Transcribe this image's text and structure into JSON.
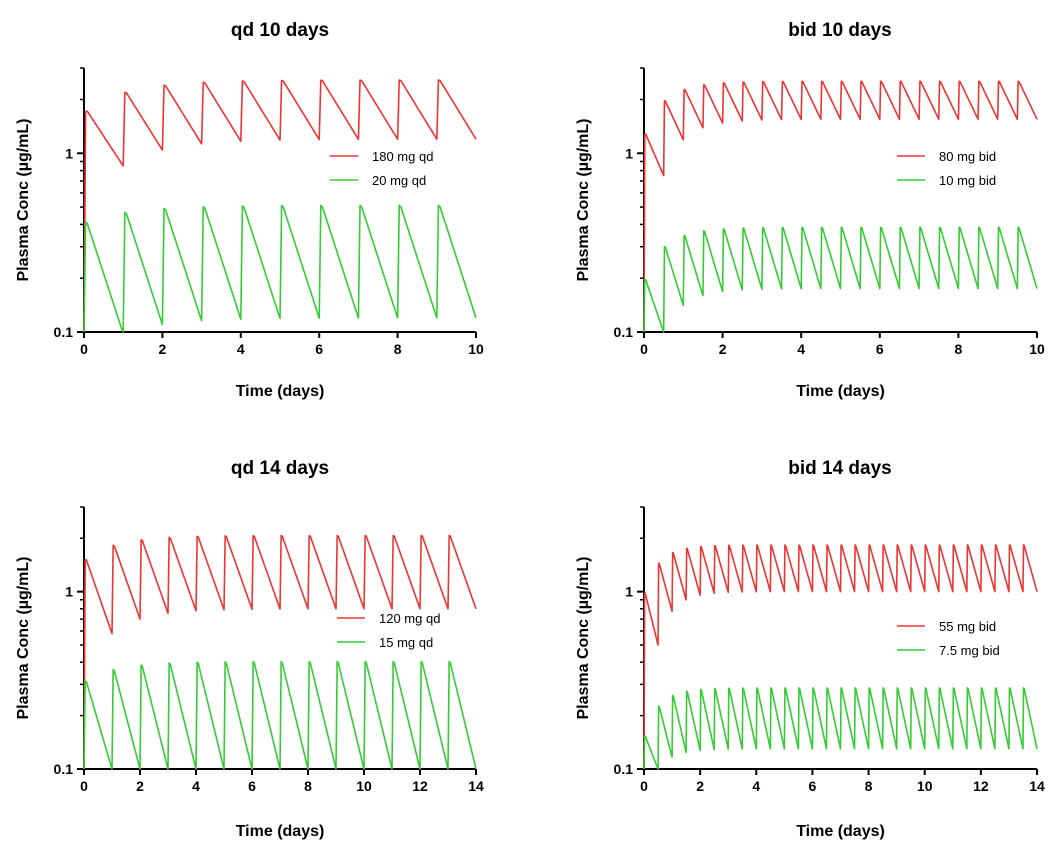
{
  "chart_data": [
    {
      "type": "line",
      "title": "qd 10 days",
      "xlabel": "Time (days)",
      "ylabel": "Plasma Conc (µg/mL)",
      "xlim": [
        0,
        10
      ],
      "ylim": [
        0.1,
        3
      ],
      "yscale": "log",
      "xticks": [
        0,
        2,
        4,
        6,
        8,
        10
      ],
      "xtick_labels": [
        "0",
        "2",
        "4",
        "6",
        "8",
        "10"
      ],
      "yticks": [
        0.1,
        1
      ],
      "ytick_labels": [
        "0.1",
        "1"
      ],
      "legend_position": "right",
      "series": [
        {
          "name": "180 mg qd",
          "color": "#ee3333",
          "dose_interval_days": 1,
          "x_end": 10,
          "first_dose_peak": 1.75,
          "steady_peak": 2.6,
          "steady_trough": 1.2,
          "first_trough": 0.85
        },
        {
          "name": "20 mg qd",
          "color": "#33cc33",
          "dose_interval_days": 1,
          "x_end": 10,
          "first_dose_peak": 0.42,
          "steady_peak": 0.52,
          "steady_trough": 0.12,
          "first_trough": 0.098
        }
      ]
    },
    {
      "type": "line",
      "title": "bid 10 days",
      "xlabel": "Time (days)",
      "ylabel": "Plasma Conc (µg/mL)",
      "xlim": [
        0,
        10
      ],
      "ylim": [
        0.1,
        3
      ],
      "yscale": "log",
      "xticks": [
        0,
        2,
        4,
        6,
        8,
        10
      ],
      "xtick_labels": [
        "0",
        "2",
        "4",
        "6",
        "8",
        "10"
      ],
      "yticks": [
        0.1,
        1
      ],
      "ytick_labels": [
        "0.1",
        "1"
      ],
      "legend_position": "right",
      "series": [
        {
          "name": "80 mg bid",
          "color": "#ee3333",
          "dose_interval_days": 0.5,
          "x_end": 10,
          "first_dose_peak": 1.3,
          "steady_peak": 2.55,
          "steady_trough": 1.55,
          "first_trough": 0.75
        },
        {
          "name": "10 mg bid",
          "color": "#33cc33",
          "dose_interval_days": 0.5,
          "x_end": 10,
          "first_dose_peak": 0.2,
          "steady_peak": 0.39,
          "steady_trough": 0.175,
          "first_trough": 0.1
        }
      ]
    },
    {
      "type": "line",
      "title": "qd 14 days",
      "xlabel": "Time (days)",
      "ylabel": "Plasma Conc (µg/mL)",
      "xlim": [
        0,
        14
      ],
      "ylim": [
        0.1,
        3
      ],
      "yscale": "log",
      "xticks": [
        0,
        2,
        4,
        6,
        8,
        10,
        12,
        14
      ],
      "xtick_labels": [
        "0",
        "2",
        "4",
        "6",
        "8",
        "10",
        "12",
        "14"
      ],
      "yticks": [
        0.1,
        1
      ],
      "ytick_labels": [
        "0.1",
        "1"
      ],
      "legend_position": "right",
      "series": [
        {
          "name": "120 mg qd",
          "color": "#ee3333",
          "dose_interval_days": 1,
          "x_end": 14,
          "first_dose_peak": 1.55,
          "steady_peak": 2.1,
          "steady_trough": 0.8,
          "first_trough": 0.58
        },
        {
          "name": "15 mg qd",
          "color": "#33cc33",
          "dose_interval_days": 1,
          "x_end": 14,
          "first_dose_peak": 0.32,
          "steady_peak": 0.41,
          "steady_trough": 0.1,
          "first_trough": 0.1
        }
      ]
    },
    {
      "type": "line",
      "title": "bid 14 days",
      "xlabel": "Time (days)",
      "ylabel": "Plasma Conc (µg/mL)",
      "xlim": [
        0,
        14
      ],
      "ylim": [
        0.1,
        3
      ],
      "yscale": "log",
      "xticks": [
        0,
        2,
        4,
        6,
        8,
        10,
        12,
        14
      ],
      "xtick_labels": [
        "0",
        "2",
        "4",
        "6",
        "8",
        "10",
        "12",
        "14"
      ],
      "yticks": [
        0.1,
        1
      ],
      "ytick_labels": [
        "0.1",
        "1"
      ],
      "legend_position": "right",
      "series": [
        {
          "name": "55 mg bid",
          "color": "#ee3333",
          "dose_interval_days": 0.5,
          "x_end": 14,
          "first_dose_peak": 1.0,
          "steady_peak": 1.85,
          "steady_trough": 1.0,
          "first_trough": 0.5
        },
        {
          "name": "7.5 mg bid",
          "color": "#33cc33",
          "dose_interval_days": 0.5,
          "x_end": 14,
          "first_dose_peak": 0.155,
          "steady_peak": 0.29,
          "steady_trough": 0.13,
          "first_trough": 0.1
        }
      ]
    }
  ]
}
